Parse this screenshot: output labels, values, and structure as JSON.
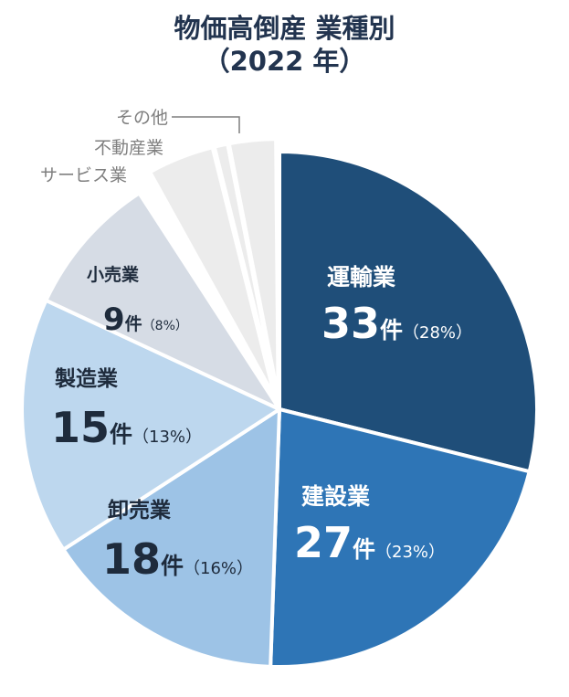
{
  "title": "物価高倒産  業種別",
  "subtitle": "（2022 年）",
  "chart_data": {
    "type": "pie",
    "unit": "件",
    "slices": [
      {
        "name": "運輸業",
        "value": 33,
        "percent": "28%",
        "color": "#1f4e79",
        "label_color": "#ffffff"
      },
      {
        "name": "建設業",
        "value": 27,
        "percent": "23%",
        "color": "#2e75b6",
        "label_color": "#ffffff"
      },
      {
        "name": "卸売業",
        "value": 18,
        "percent": "16%",
        "color": "#9dc3e6",
        "label_color": "#1e2b3c"
      },
      {
        "name": "製造業",
        "value": 15,
        "percent": "13%",
        "color": "#bdd7ee",
        "label_color": "#1e2b3c"
      },
      {
        "name": "小売業",
        "value": 9,
        "percent": "8%",
        "color": "#d6dce5",
        "label_color": "#1e2b3c"
      },
      {
        "name": "サービス業",
        "value": null,
        "percent": "",
        "color": "#ececec",
        "label_color": "#7f7f7f"
      },
      {
        "name": "不動産業",
        "value": null,
        "percent": "",
        "color": "#ececec",
        "label_color": "#7f7f7f"
      },
      {
        "name": "その他",
        "value": null,
        "percent": "",
        "color": "#ececec",
        "label_color": "#7f7f7f"
      }
    ]
  }
}
